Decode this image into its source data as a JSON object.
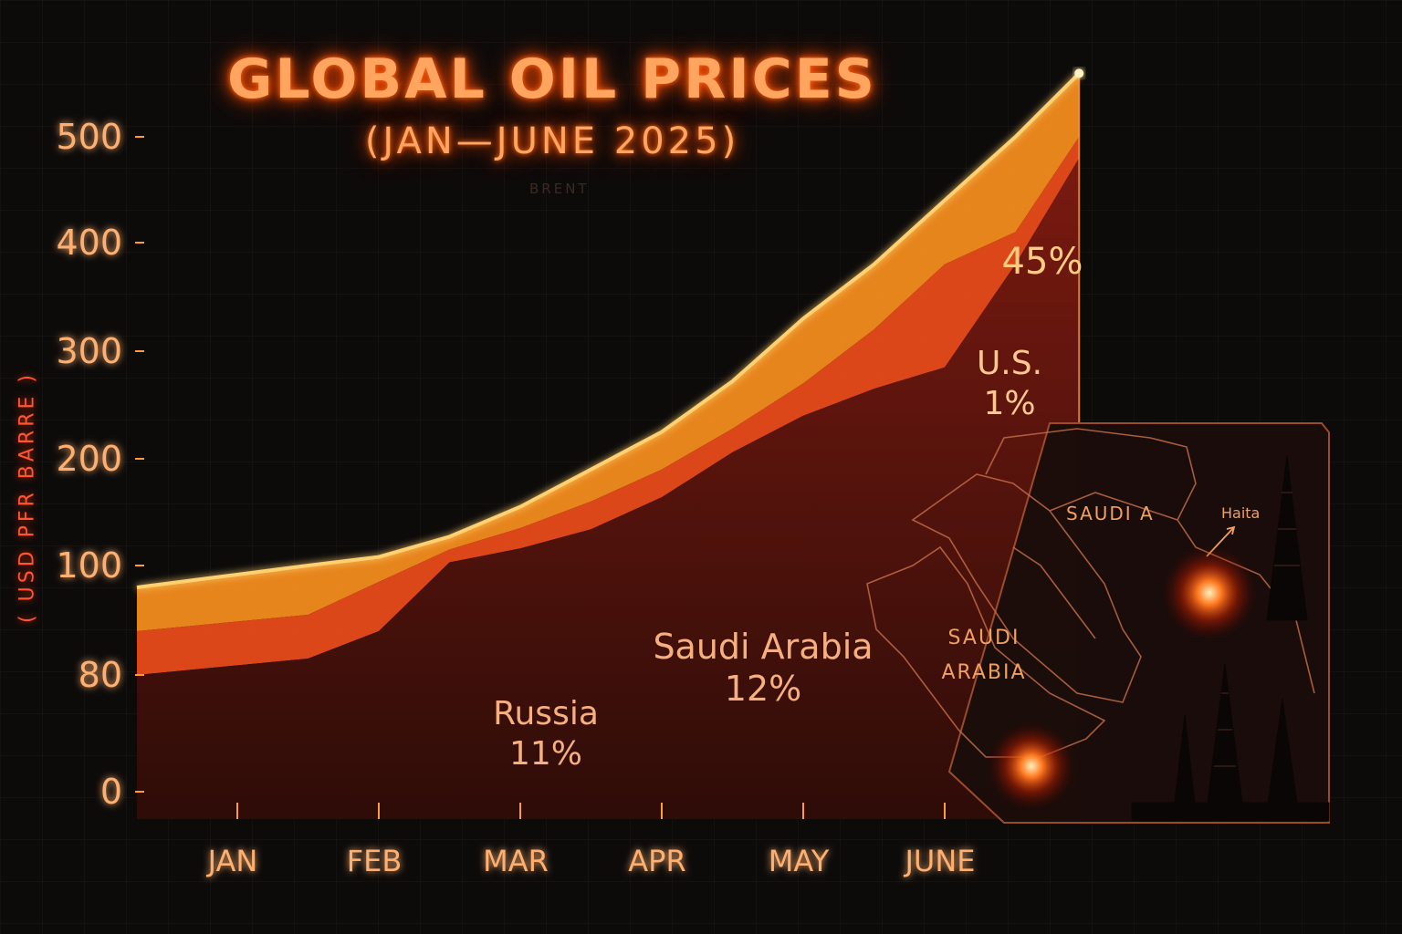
{
  "chart_data": {
    "type": "area",
    "title": "GLOBAL OIL PRICES",
    "subtitle": "(JAN—JUNE 2025)",
    "annotation_top": "BRENT",
    "ylabel": "( USD PFR BARRE )",
    "xlabel": "",
    "categories": [
      "JAN",
      "FEB",
      "MAR",
      "APR",
      "MAY",
      "JUNE"
    ],
    "y_ticks": [
      {
        "label": "500",
        "value": 500
      },
      {
        "label": "400",
        "value": 400
      },
      {
        "label": "300",
        "value": 300
      },
      {
        "label": "200",
        "value": 200
      },
      {
        "label": "100",
        "value": 100
      },
      {
        "label": "80",
        "value": 80
      },
      {
        "label": "0",
        "value": 0
      }
    ],
    "x": [
      0,
      0.5,
      1,
      1.5,
      2,
      2.5,
      3,
      3.5,
      4,
      4.5,
      5,
      5.5,
      5.95
    ],
    "series": [
      {
        "name": "",
        "values": [
          0,
          0,
          0,
          0,
          0,
          0,
          0,
          0,
          0,
          0,
          0,
          0,
          0
        ]
      },
      {
        "name": "",
        "values": [
          80,
          83,
          88,
          103,
          116,
          134,
          164,
          206,
          240,
          265,
          285,
          380,
          480
        ]
      },
      {
        "name": "",
        "values": [
          88,
          91,
          97,
          115,
          135,
          160,
          190,
          228,
          270,
          320,
          380,
          410,
          500
        ]
      },
      {
        "name": "",
        "values": [
          96,
          100,
          108,
          127,
          155,
          190,
          225,
          272,
          330,
          380,
          440,
          500,
          560
        ]
      }
    ],
    "area_labels": [
      {
        "name": "45%"
      },
      {
        "name": "U.S.",
        "value": "1%"
      },
      {
        "name": "Saudi Arabia",
        "value": "12%"
      },
      {
        "name": "Russia",
        "value": "11%"
      }
    ],
    "grid": true,
    "legend": "none",
    "colors": {
      "top_area": "#f08a1e",
      "mid_area": "#e44a1a",
      "low_area": "#5a1410",
      "line": "#ffd070",
      "axis": "#ff9a40",
      "text": "#ffb070"
    }
  },
  "map": {
    "label_saudia": "SAUDI A",
    "label_haita": "Haita",
    "label_saudi": "SAUDI",
    "label_arabia": "ARABIA"
  }
}
